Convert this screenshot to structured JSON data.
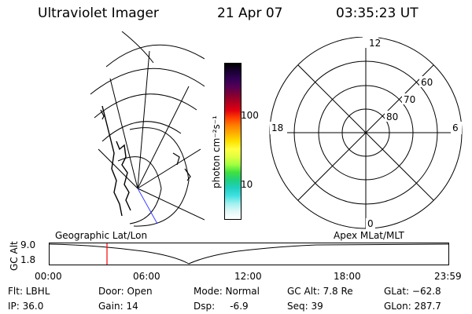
{
  "header": {
    "instrument": "Ultraviolet Imager",
    "date": "21 Apr 07",
    "time": "03:35:23 UT"
  },
  "colorbar": {
    "unit_label": "photon cm⁻²s⁻¹",
    "tick_100": "100",
    "tick_10": "10",
    "colors": [
      "#000000",
      "#1a0033",
      "#330055",
      "#550055",
      "#800033",
      "#b00020",
      "#e00010",
      "#ff4000",
      "#ff8000",
      "#ffb000",
      "#ffe000",
      "#ffff40",
      "#e0ff40",
      "#a0ff40",
      "#40e040",
      "#20d080",
      "#20d0c0",
      "#40e0e0",
      "#a0f0f0",
      "#e0f8f8",
      "#ffffff"
    ]
  },
  "polar_plot": {
    "label_12": "12",
    "label_6": "6",
    "label_18": "18",
    "label_0": "0",
    "lat_60": "60",
    "lat_70": "70",
    "lat_80": "80"
  },
  "timeline": {
    "ylabel": "GC Alt",
    "y_max": "9.0",
    "y_min": "1.8",
    "left_title": "Geographic Lat/Lon",
    "right_title": "Apex MLat/MLT",
    "ticks": [
      "00:00",
      "06:00",
      "12:00",
      "18:00",
      "23:59"
    ],
    "marker_color": "#ff0000"
  },
  "info": {
    "flt": "Flt: LBHL",
    "ip": "IP: 36.0",
    "door": "Door: Open",
    "gain": "Gain: 14",
    "mode": "Mode: Normal",
    "dsp": "Dsp:     -6.9",
    "gcalt": "GC Alt: 7.8 Re",
    "seq": "Seq: 39",
    "glat": "GLat: −62.8",
    "glon": "GLon: 287.7"
  }
}
